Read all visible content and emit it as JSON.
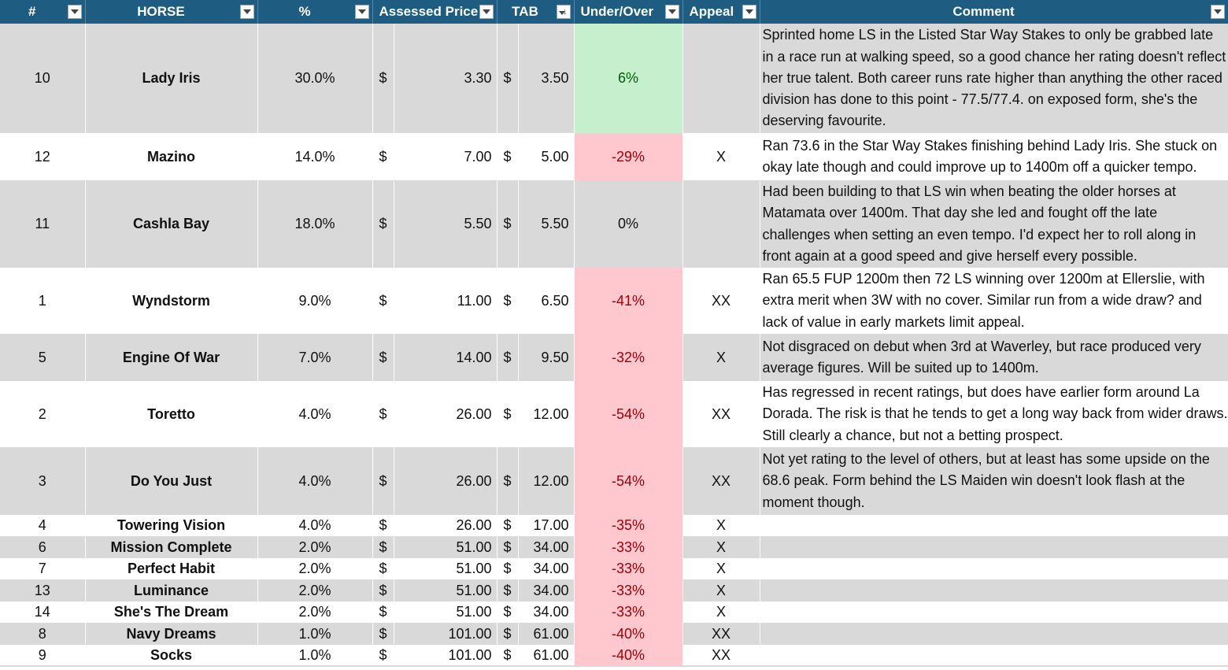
{
  "headers": {
    "num": "#",
    "horse": "HORSE",
    "pct": "%",
    "assessed": "Assessed Price",
    "tab": "TAB",
    "under_over": "Under/Over",
    "appeal": "Appeal",
    "comment": "Comment"
  },
  "colors": {
    "header_bg": "#1f5c82",
    "alt_row": "#d9d9d9",
    "positive_fill": "#c6efce",
    "positive_text": "#006100",
    "negative_fill": "#ffc7ce",
    "negative_text": "#9c0006"
  },
  "icons": {
    "filter": "filter-dropdown-icon",
    "sort": "sort-descending-icon"
  },
  "sorted_column": "tab",
  "rows": [
    {
      "num": "10",
      "horse": "Lady Iris",
      "pct": "30.0%",
      "assessed_cur": "$",
      "assessed": "3.30",
      "tab_cur": "$",
      "tab": "3.50",
      "under_over": "6%",
      "sign": "pos",
      "appeal": "",
      "comment": "Sprinted home LS in the Listed Star Way Stakes to only be grabbed late in a race run at walking speed, so a good chance her rating doesn't reflect her true talent. Both career runs rate higher than anything the other raced division has done to this point - 77.5/77.4. on exposed form, she's the deserving favourite.",
      "lines": 5
    },
    {
      "num": "12",
      "horse": "Mazino",
      "pct": "14.0%",
      "assessed_cur": "$",
      "assessed": "7.00",
      "tab_cur": "$",
      "tab": "5.00",
      "under_over": "-29%",
      "sign": "neg",
      "appeal": "X",
      "comment": "Ran 73.6 in the Star Way Stakes finishing behind Lady Iris. She stuck on okay late though and could improve up to 1400m off a quicker tempo.",
      "lines": 2
    },
    {
      "num": "11",
      "horse": "Cashla Bay",
      "pct": "18.0%",
      "assessed_cur": "$",
      "assessed": "5.50",
      "tab_cur": "$",
      "tab": "5.50",
      "under_over": "0%",
      "sign": "zero",
      "appeal": "",
      "comment": "Had been building to that LS win when beating the older horses at Matamata over 1400m. That day she led and fought off the late challenges when setting an even tempo. I'd expect her to roll along in front again at a good speed and give herself every possible.",
      "lines": 4
    },
    {
      "num": "1",
      "horse": "Wyndstorm",
      "pct": "9.0%",
      "assessed_cur": "$",
      "assessed": "11.00",
      "tab_cur": "$",
      "tab": "6.50",
      "under_over": "-41%",
      "sign": "neg",
      "appeal": "XX",
      "comment": "Ran 65.5 FUP 1200m then 72 LS winning over 1200m at Ellerslie, with extra merit when 3W with no cover. Similar run from a wide draw? and lack of value in early markets limit appeal.",
      "lines": 3
    },
    {
      "num": "5",
      "horse": "Engine Of War",
      "pct": "7.0%",
      "assessed_cur": "$",
      "assessed": "14.00",
      "tab_cur": "$",
      "tab": "9.50",
      "under_over": "-32%",
      "sign": "neg",
      "appeal": "X",
      "comment": "Not disgraced on debut when 3rd at Waverley, but race produced very average figures. Will be suited up to 1400m.",
      "lines": 2
    },
    {
      "num": "2",
      "horse": "Toretto",
      "pct": "4.0%",
      "assessed_cur": "$",
      "assessed": "26.00",
      "tab_cur": "$",
      "tab": "12.00",
      "under_over": "-54%",
      "sign": "neg",
      "appeal": "XX",
      "comment": "Has regressed in recent ratings, but does have earlier form around La Dorada. The risk is that he tends to get a long way back from wider draws. Still clearly a chance, but not a betting prospect.",
      "lines": 3
    },
    {
      "num": "3",
      "horse": "Do You Just",
      "pct": "4.0%",
      "assessed_cur": "$",
      "assessed": "26.00",
      "tab_cur": "$",
      "tab": "12.00",
      "under_over": "-54%",
      "sign": "neg",
      "appeal": "XX",
      "comment": "Not yet rating to the level of others, but at least has some upside on the 68.6 peak. Form behind the LS Maiden win doesn't look flash at the moment though.",
      "lines": 3
    },
    {
      "num": "4",
      "horse": "Towering Vision",
      "pct": "4.0%",
      "assessed_cur": "$",
      "assessed": "26.00",
      "tab_cur": "$",
      "tab": "17.00",
      "under_over": "-35%",
      "sign": "neg",
      "appeal": "X",
      "comment": "",
      "lines": 1
    },
    {
      "num": "6",
      "horse": "Mission Complete",
      "pct": "2.0%",
      "assessed_cur": "$",
      "assessed": "51.00",
      "tab_cur": "$",
      "tab": "34.00",
      "under_over": "-33%",
      "sign": "neg",
      "appeal": "X",
      "comment": "",
      "lines": 1
    },
    {
      "num": "7",
      "horse": "Perfect Habit",
      "pct": "2.0%",
      "assessed_cur": "$",
      "assessed": "51.00",
      "tab_cur": "$",
      "tab": "34.00",
      "under_over": "-33%",
      "sign": "neg",
      "appeal": "X",
      "comment": "",
      "lines": 1
    },
    {
      "num": "13",
      "horse": "Luminance",
      "pct": "2.0%",
      "assessed_cur": "$",
      "assessed": "51.00",
      "tab_cur": "$",
      "tab": "34.00",
      "under_over": "-33%",
      "sign": "neg",
      "appeal": "X",
      "comment": "",
      "lines": 1
    },
    {
      "num": "14",
      "horse": "She's The Dream",
      "pct": "2.0%",
      "assessed_cur": "$",
      "assessed": "51.00",
      "tab_cur": "$",
      "tab": "34.00",
      "under_over": "-33%",
      "sign": "neg",
      "appeal": "X",
      "comment": "",
      "lines": 1
    },
    {
      "num": "8",
      "horse": "Navy Dreams",
      "pct": "1.0%",
      "assessed_cur": "$",
      "assessed": "101.00",
      "tab_cur": "$",
      "tab": "61.00",
      "under_over": "-40%",
      "sign": "neg",
      "appeal": "XX",
      "comment": "",
      "lines": 1
    },
    {
      "num": "9",
      "horse": "Socks",
      "pct": "1.0%",
      "assessed_cur": "$",
      "assessed": "101.00",
      "tab_cur": "$",
      "tab": "61.00",
      "under_over": "-40%",
      "sign": "neg",
      "appeal": "XX",
      "comment": "",
      "lines": 1
    }
  ]
}
